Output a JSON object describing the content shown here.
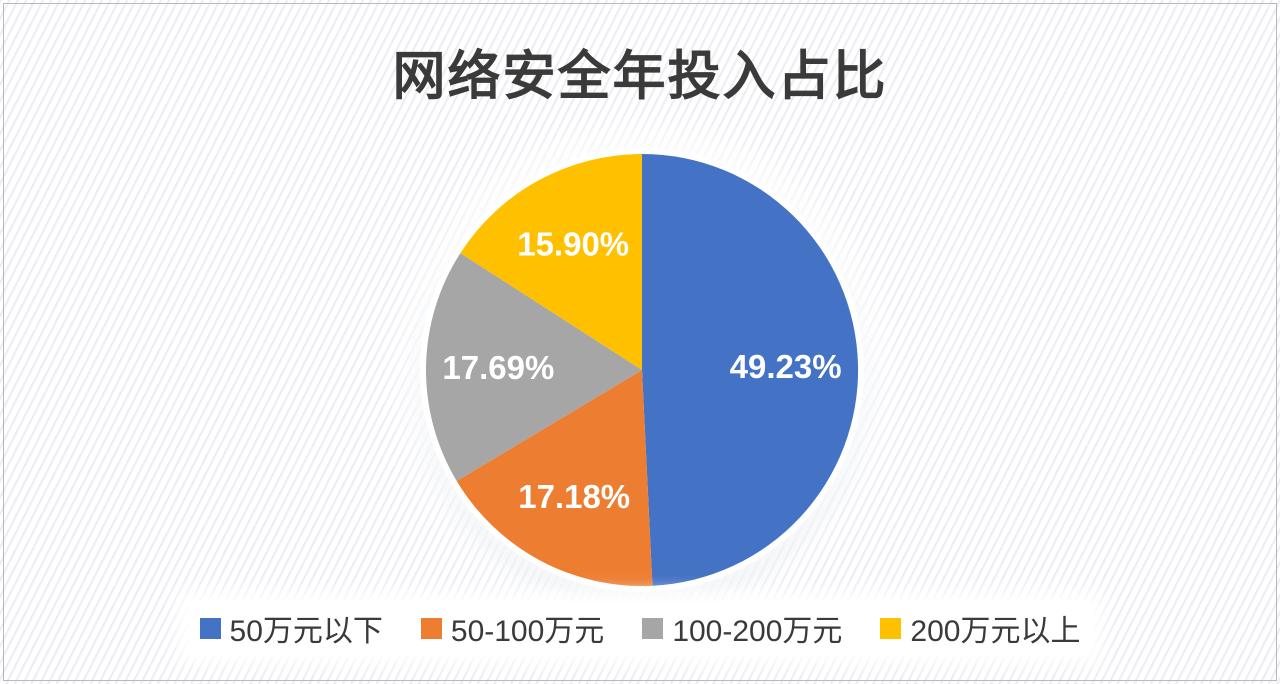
{
  "title": "网络安全年投入占比",
  "colors": {
    "title_text": "#3a3a3a",
    "legend_text": "#3a3a3a",
    "data_label": "#ffffff",
    "frame_border": "#b6b8bc",
    "background": "#ffffff"
  },
  "chart_data": {
    "type": "pie",
    "title": "网络安全年投入占比",
    "direction": "clockwise",
    "start_angle_deg": 0,
    "legend_position": "bottom",
    "data_label_format": "percent",
    "slices": [
      {
        "label": "50万元以下",
        "value": 49.23,
        "display": "49.23%",
        "color": "#4472C4"
      },
      {
        "label": "50-100万元",
        "value": 17.18,
        "display": "17.18%",
        "color": "#ED7D31"
      },
      {
        "label": "100-200万元",
        "value": 17.69,
        "display": "17.69%",
        "color": "#A6A6A6"
      },
      {
        "label": "200万元以上",
        "value": 15.9,
        "display": "15.90%",
        "color": "#FFC000"
      }
    ]
  }
}
